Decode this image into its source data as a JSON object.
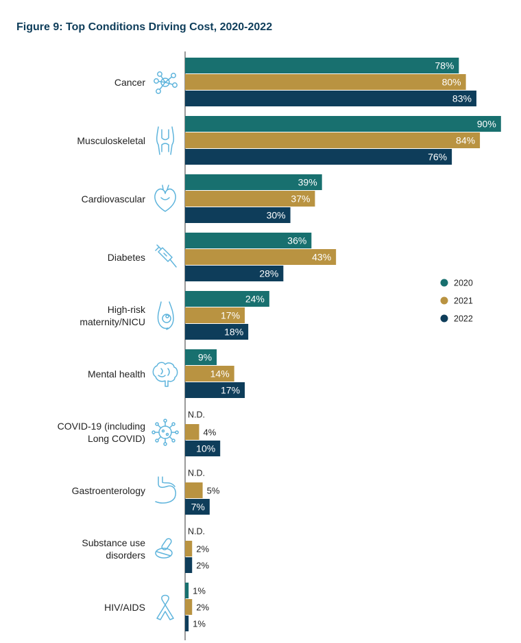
{
  "colors": {
    "2020": "#18706f",
    "2021": "#b99341",
    "2022": "#0e3d5a",
    "icon": "#5eb4dc",
    "title": "#0e3d5a"
  },
  "chart_data": {
    "type": "bar",
    "orientation": "horizontal",
    "title": "Figure 9: Top Conditions Driving Cost, 2020-2022",
    "xlabel": "",
    "ylabel": "",
    "xlim": [
      0,
      100
    ],
    "grid": false,
    "legend": "right",
    "unit": "%",
    "categories": [
      {
        "label": [
          "Cancer"
        ],
        "icon": "network-icon"
      },
      {
        "label": [
          "Musculoskeletal"
        ],
        "icon": "knee-joint-icon"
      },
      {
        "label": [
          "Cardiovascular"
        ],
        "icon": "heart-icon"
      },
      {
        "label": [
          "Diabetes"
        ],
        "icon": "syringe-icon"
      },
      {
        "label": [
          "High-risk",
          "maternity/NICU"
        ],
        "icon": "pregnancy-icon"
      },
      {
        "label": [
          "Mental health"
        ],
        "icon": "brain-icon"
      },
      {
        "label": [
          "COVID-19 (including",
          "Long COVID)"
        ],
        "icon": "virus-icon"
      },
      {
        "label": [
          "Gastroenterology"
        ],
        "icon": "stomach-icon"
      },
      {
        "label": [
          "Substance use",
          "disorders"
        ],
        "icon": "pills-icon"
      },
      {
        "label": [
          "HIV/AIDS"
        ],
        "icon": "awareness-ribbon-icon"
      }
    ],
    "no_data_label": "N.D.",
    "series": [
      {
        "name": "2020",
        "values": [
          78,
          90,
          39,
          36,
          24,
          9,
          null,
          null,
          null,
          1
        ]
      },
      {
        "name": "2021",
        "values": [
          80,
          84,
          37,
          43,
          17,
          14,
          4,
          5,
          2,
          2
        ]
      },
      {
        "name": "2022",
        "values": [
          83,
          76,
          30,
          28,
          18,
          17,
          10,
          7,
          2,
          1
        ]
      }
    ]
  }
}
